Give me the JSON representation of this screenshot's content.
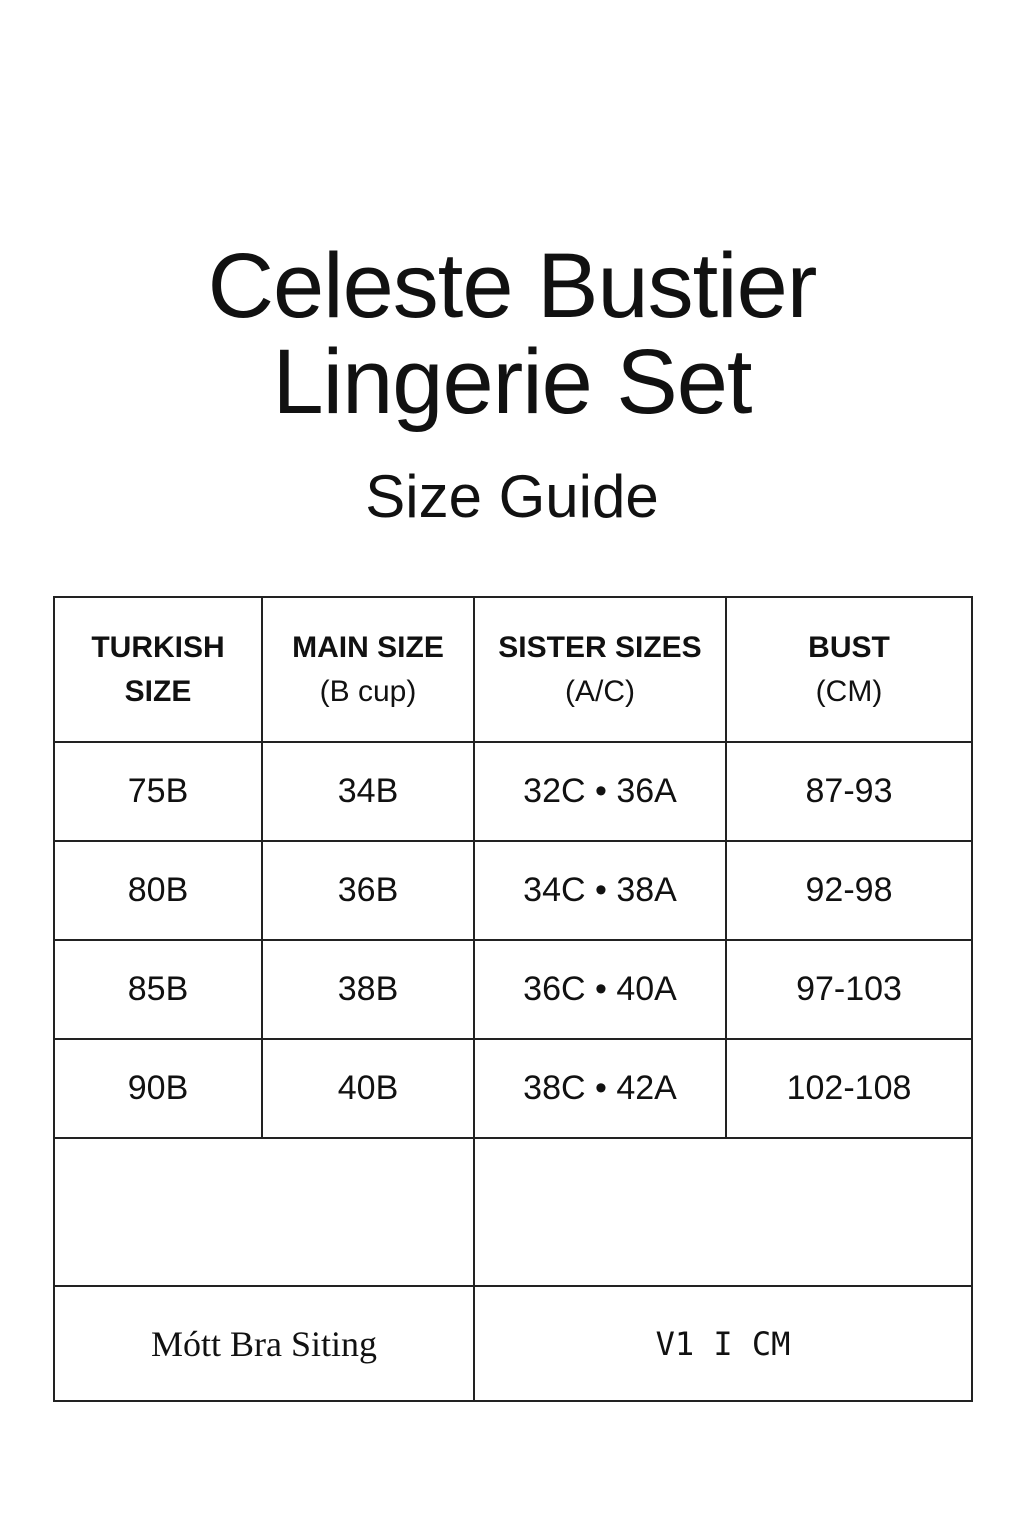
{
  "title_line1": "Celeste Bustier",
  "title_line2": "Lingerie Set",
  "subtitle": "Size Guide",
  "table": {
    "headers": [
      {
        "line1": "TURKISH",
        "line2": "SIZE"
      },
      {
        "line1": "MAIN SIZE",
        "line2": "(B cup)"
      },
      {
        "line1": "SISTER SIZES",
        "line2": "(A/C)"
      },
      {
        "line1": "BUST",
        "line2": "(CM)"
      }
    ],
    "rows": [
      [
        "75B",
        "34B",
        "32C • 36A",
        "87-93"
      ],
      [
        "80B",
        "36B",
        "34C • 38A",
        "92-98"
      ],
      [
        "85B",
        "38B",
        "36C • 40A",
        "97-103"
      ],
      [
        "90B",
        "40B",
        "38C • 42A",
        "102-108"
      ]
    ],
    "footer_left": "Mótt Bra Siting",
    "footer_right": "V1 I CM"
  }
}
